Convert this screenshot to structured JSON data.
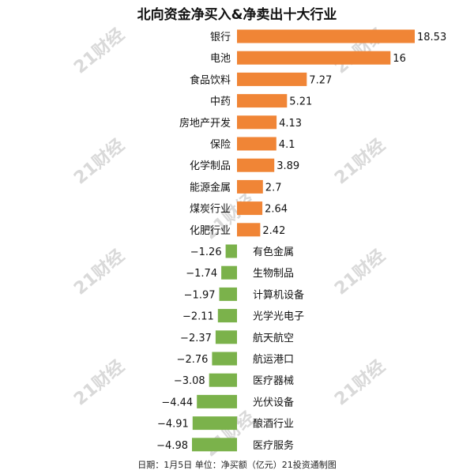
{
  "chart_data": {
    "type": "bar",
    "title": "北向资金净买入&净卖出十大行业",
    "footer": "日期：1月5日 单位：净买额（亿元）21投资通制图",
    "watermark": "21财经",
    "colors": {
      "positive": "#F08536",
      "negative": "#7BB24B"
    },
    "categories": [
      "银行",
      "电池",
      "食品饮料",
      "中药",
      "房地产开发",
      "保险",
      "化学制品",
      "能源金属",
      "煤炭行业",
      "化肥行业",
      "有色金属",
      "生物制品",
      "计算机设备",
      "光学光电子",
      "航天航空",
      "航运港口",
      "医疗器械",
      "光伏设备",
      "酿酒行业",
      "医疗服务"
    ],
    "values": [
      18.53,
      16,
      7.27,
      5.21,
      4.13,
      4.1,
      3.89,
      2.7,
      2.64,
      2.42,
      -1.26,
      -1.74,
      -1.97,
      -2.11,
      -2.37,
      -2.76,
      -3.08,
      -4.44,
      -4.91,
      -4.98
    ],
    "value_labels": [
      "18.53",
      "16",
      "7.27",
      "5.21",
      "4.13",
      "4.1",
      "3.89",
      "2.7",
      "2.64",
      "2.42",
      "−1.26",
      "−1.74",
      "−1.97",
      "−2.11",
      "−2.37",
      "−2.76",
      "−3.08",
      "−4.44",
      "−4.91",
      "−4.98"
    ],
    "xlim": [
      -5.31,
      18.53
    ]
  }
}
